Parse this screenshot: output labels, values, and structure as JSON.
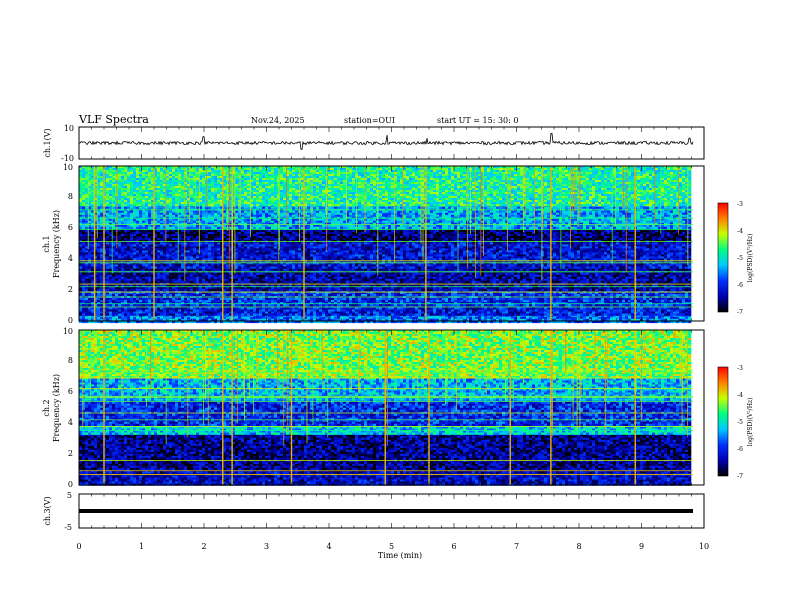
{
  "header": {
    "title": "VLF Spectra",
    "date": "Nov.24, 2025",
    "station": "station=OUI",
    "start": "start  UT =   15: 30: 0"
  },
  "chart_data": [
    {
      "type": "line",
      "panel": "ch1-waveform",
      "ylabel": "ch.1(V)",
      "ylim": [
        -10,
        10
      ],
      "yticks": [
        "10",
        "-10"
      ],
      "xlim": [
        0,
        10
      ],
      "baseline": 0,
      "noise_amplitude": 1,
      "spikes": [
        {
          "t": 1.99,
          "v": 4
        },
        {
          "t": 3.56,
          "v": -4
        },
        {
          "t": 4.93,
          "v": 5
        },
        {
          "t": 5.57,
          "v": 3
        },
        {
          "t": 7.56,
          "v": 6
        },
        {
          "t": 9.77,
          "v": 3
        }
      ]
    },
    {
      "type": "heatmap",
      "panel": "ch1-spectrogram",
      "ylabel": "Frequency (kHz)",
      "channel_label": "ch.1",
      "ylim": [
        0,
        10
      ],
      "yticks": [
        "0",
        "2",
        "4",
        "6",
        "8",
        "10"
      ],
      "xlim": [
        0,
        10
      ],
      "frequency_bands_khz": [
        {
          "f0": 0.0,
          "f1": 0.4,
          "level": -5.6
        },
        {
          "f0": 0.4,
          "f1": 1.0,
          "level": -6.1
        },
        {
          "f0": 1.0,
          "f1": 2.0,
          "level": -6.0
        },
        {
          "f0": 2.0,
          "f1": 3.5,
          "level": -6.4
        },
        {
          "f0": 3.5,
          "f1": 5.2,
          "level": -6.2
        },
        {
          "f0": 5.2,
          "f1": 6.0,
          "level": -6.6
        },
        {
          "f0": 6.0,
          "f1": 7.5,
          "level": -5.4
        },
        {
          "f0": 7.5,
          "f1": 10.0,
          "level": -4.8
        }
      ],
      "bursts_min": [
        0.25,
        0.4,
        1.2,
        2.3,
        2.45,
        3.6,
        5.55,
        7.55,
        8.9
      ]
    },
    {
      "type": "heatmap",
      "panel": "ch2-spectrogram",
      "ylabel": "Frequency (kHz)",
      "channel_label": "ch.2",
      "ylim": [
        0,
        10
      ],
      "yticks": [
        "0",
        "2",
        "4",
        "6",
        "8",
        "10"
      ],
      "xlim": [
        0,
        10
      ],
      "frequency_bands_khz": [
        {
          "f0": 0.0,
          "f1": 1.0,
          "level": -6.3
        },
        {
          "f0": 1.0,
          "f1": 3.3,
          "level": -6.5
        },
        {
          "f0": 3.3,
          "f1": 3.9,
          "level": -5.2
        },
        {
          "f0": 3.9,
          "f1": 5.5,
          "level": -6.0
        },
        {
          "f0": 5.5,
          "f1": 7.0,
          "level": -5.3
        },
        {
          "f0": 7.0,
          "f1": 10.0,
          "level": -4.4
        }
      ],
      "bursts_min": [
        0.4,
        2.3,
        2.45,
        3.4,
        4.9,
        5.6,
        6.9,
        7.55,
        8.9
      ]
    },
    {
      "type": "line",
      "panel": "ch3-waveform",
      "ylabel": "ch.3(V)",
      "ylim": [
        -5,
        5
      ],
      "yticks": [
        "5",
        "-5"
      ],
      "xlim": [
        0,
        10
      ],
      "baseline": 0
    }
  ],
  "xaxis": {
    "label": "Time (min)",
    "ticks": [
      "0",
      "1",
      "2",
      "3",
      "4",
      "5",
      "6",
      "7",
      "8",
      "9",
      "10"
    ]
  },
  "colorbar": {
    "label": "log(PSD)(V²/Hz)",
    "range": [
      -7,
      -3
    ],
    "ticks": [
      "-3",
      "-4",
      "-5",
      "-6",
      "-7"
    ]
  },
  "colors": {
    "scale": [
      "#000000",
      "#0000b0",
      "#0030ff",
      "#00c8ff",
      "#00ff80",
      "#c8ff00",
      "#ff8000",
      "#ff0000"
    ]
  }
}
